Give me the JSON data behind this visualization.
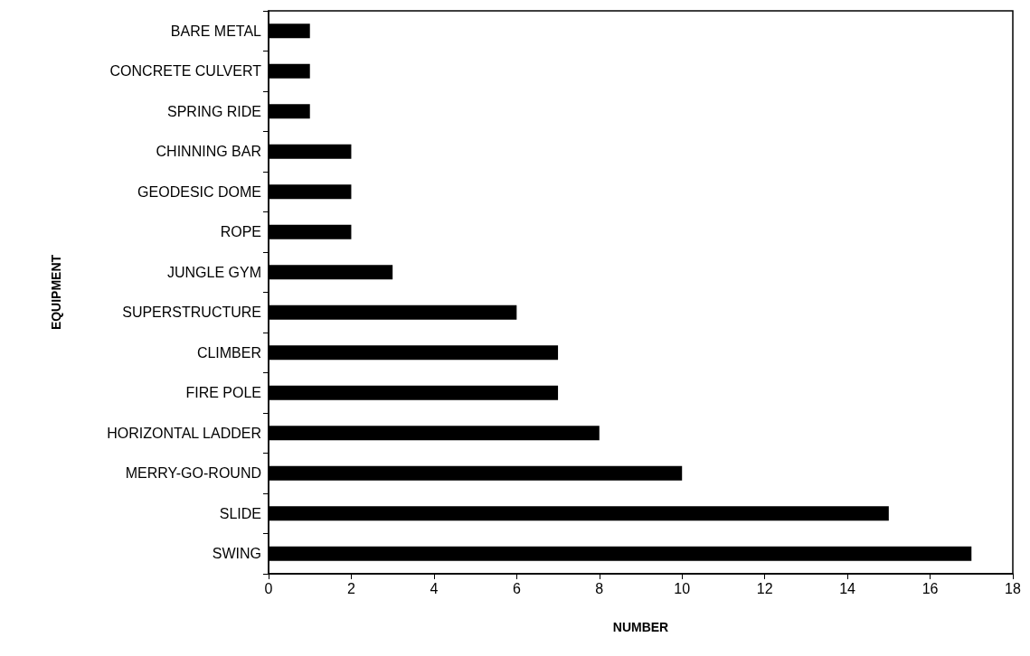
{
  "chart_data": {
    "type": "bar",
    "orientation": "horizontal",
    "xlabel": "NUMBER",
    "ylabel": "EQUIPMENT",
    "categories": [
      "BARE METAL",
      "CONCRETE CULVERT",
      "SPRING RIDE",
      "CHINNING BAR",
      "GEODESIC DOME",
      "ROPE",
      "JUNGLE GYM",
      "SUPERSTRUCTURE",
      "CLIMBER",
      "FIRE POLE",
      "HORIZONTAL LADDER",
      "MERRY-GO-ROUND",
      "SLIDE",
      "SWING"
    ],
    "values": [
      1,
      1,
      1,
      2,
      2,
      2,
      3,
      6,
      7,
      7,
      8,
      10,
      15,
      17
    ],
    "color": "#000000",
    "xlim": [
      0,
      18
    ],
    "xticks": [
      0,
      2,
      4,
      6,
      8,
      10,
      12,
      14,
      16,
      18
    ],
    "grid": false
  }
}
